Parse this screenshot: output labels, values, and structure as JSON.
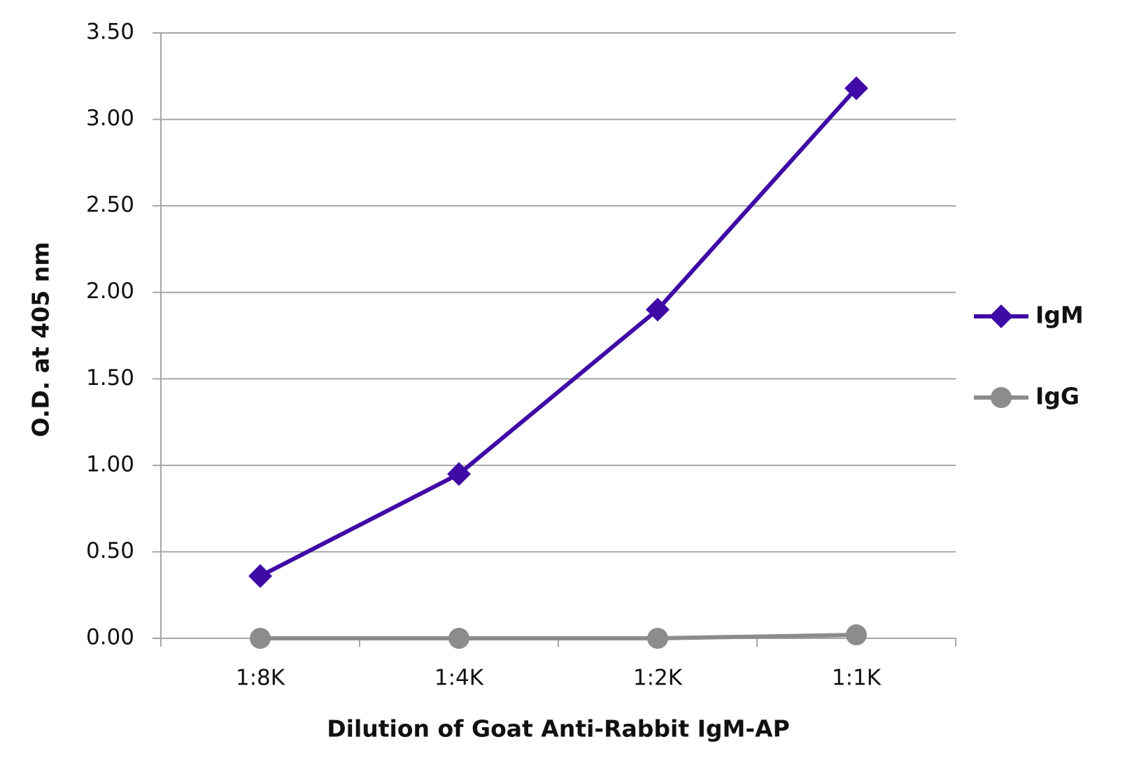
{
  "chart_data": {
    "type": "line",
    "x_label": "Dilution of Goat Anti-Rabbit IgM-AP",
    "y_label": "O.D. at 405 nm",
    "categories": [
      "1:8K",
      "1:4K",
      "1:2K",
      "1:1K"
    ],
    "series": [
      {
        "name": "IgM",
        "color": "#3f0aa6",
        "marker": "diamond",
        "values": [
          0.36,
          0.95,
          1.9,
          3.18
        ]
      },
      {
        "name": "IgG",
        "color": "#8c8c8c",
        "marker": "circle",
        "values": [
          0.0,
          0.0,
          0.0,
          0.02
        ]
      }
    ],
    "ylim": [
      0,
      3.5
    ],
    "yticks": [
      {
        "value": 0,
        "label": "0.00"
      },
      {
        "value": 0.5,
        "label": "0.50"
      },
      {
        "value": 1,
        "label": "1.00"
      },
      {
        "value": 1.5,
        "label": "1.50"
      },
      {
        "value": 2,
        "label": "2.00"
      },
      {
        "value": 2.5,
        "label": "2.50"
      },
      {
        "value": 3,
        "label": "3.00"
      },
      {
        "value": 3.5,
        "label": "3.50"
      }
    ],
    "grid": true,
    "legend": "right"
  }
}
